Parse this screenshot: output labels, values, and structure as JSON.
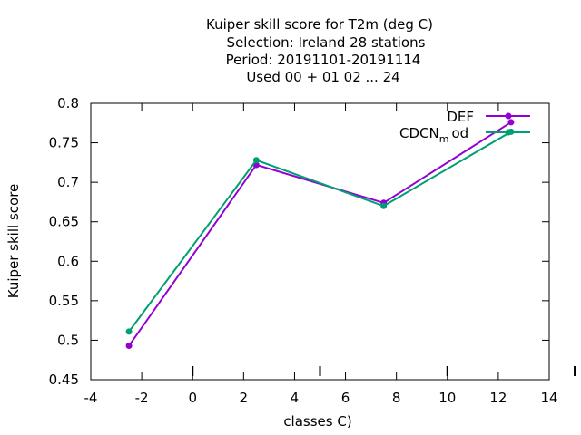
{
  "chart_data": {
    "type": "line",
    "title_lines": [
      "Kuiper skill score  for T2m (deg C)",
      "Selection: Ireland     28 stations",
      "Period: 20191101-20191114",
      "Used  00 + 01 02 ... 24"
    ],
    "xlabel": "classes C)",
    "ylabel": "Kuiper skill score",
    "xlim": [
      -4,
      14
    ],
    "ylim": [
      0.45,
      0.8
    ],
    "xticks": [
      "-4",
      "-2",
      "0",
      "2",
      "4",
      "6",
      "8",
      "10",
      "12",
      "14"
    ],
    "yticks": [
      "0.45",
      "0.5",
      "0.55",
      "0.6",
      "0.65",
      "0.7",
      "0.75",
      "0.8"
    ],
    "class_markers_x": [
      0,
      5,
      10,
      15
    ],
    "legend_position": "top-right",
    "series": [
      {
        "name": "DEF",
        "color": "#9400d3",
        "x": [
          -2.5,
          2.5,
          7.5,
          12.5
        ],
        "y": [
          0.493,
          0.722,
          0.674,
          0.776
        ]
      },
      {
        "name_main": "CDCN",
        "name_sub": "m",
        "name_tail": "od",
        "color": "#009e73",
        "x": [
          -2.5,
          2.5,
          7.5,
          12.5
        ],
        "y": [
          0.511,
          0.728,
          0.67,
          0.764
        ]
      }
    ]
  }
}
